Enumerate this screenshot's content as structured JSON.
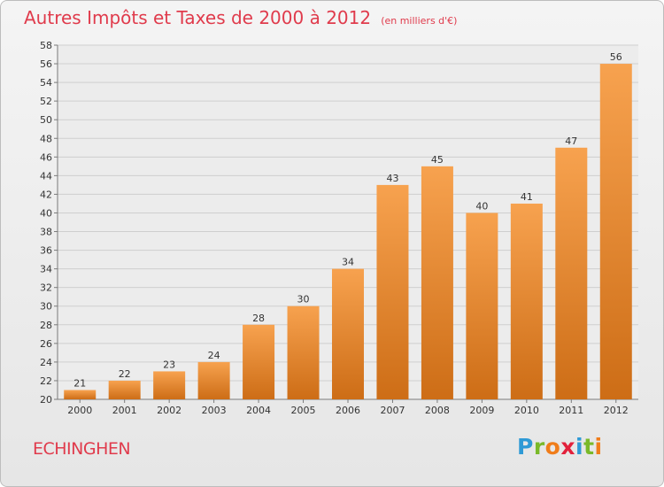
{
  "title": "Autres Impôts et Taxes de 2000 à 2012",
  "subtitle": "(en milliers d'€)",
  "commune": "ECHINGHEN",
  "logo": {
    "letters": [
      {
        "ch": "P",
        "color": "#2f9ad6"
      },
      {
        "ch": "r",
        "color": "#7ab929"
      },
      {
        "ch": "o",
        "color": "#f07d1a"
      },
      {
        "ch": "x",
        "color": "#e2213c"
      },
      {
        "ch": "i",
        "color": "#2f9ad6"
      },
      {
        "ch": "t",
        "color": "#7ab929"
      },
      {
        "ch": "i",
        "color": "#f07d1a"
      }
    ]
  },
  "chart_data": {
    "type": "bar",
    "categories": [
      "2000",
      "2001",
      "2002",
      "2003",
      "2004",
      "2005",
      "2006",
      "2007",
      "2008",
      "2009",
      "2010",
      "2011",
      "2012"
    ],
    "values": [
      21,
      22,
      23,
      24,
      28,
      30,
      34,
      43,
      45,
      40,
      41,
      47,
      56
    ],
    "ylim": [
      20,
      58
    ],
    "ytick_step": 2,
    "grid": true,
    "bar_color_top": "#f7a24f",
    "bar_color_bottom": "#cd6d16"
  }
}
